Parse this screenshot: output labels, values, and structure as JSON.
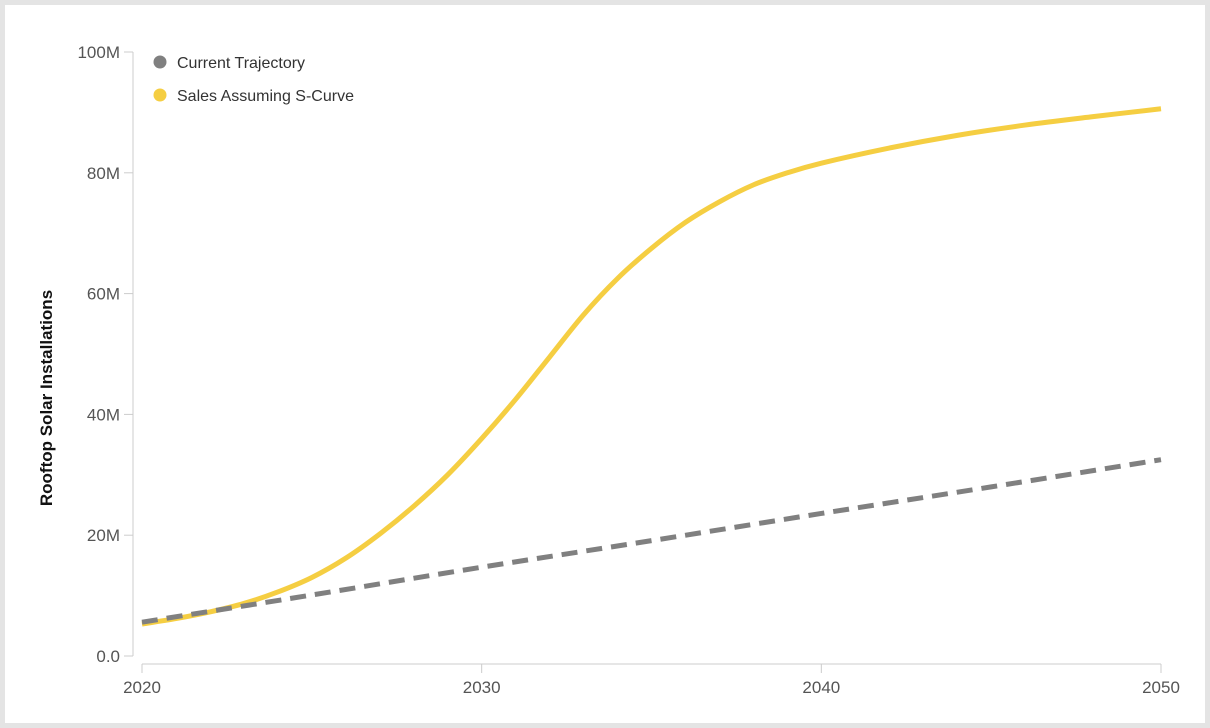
{
  "chart_data": {
    "type": "line",
    "title": "",
    "xlabel": "",
    "ylabel": "Rooftop Solar Installations",
    "xlim": [
      2020,
      2050
    ],
    "ylim": [
      0,
      100000000
    ],
    "x_ticks": [
      {
        "value": 2020,
        "label": "2020"
      },
      {
        "value": 2030,
        "label": "2030"
      },
      {
        "value": 2040,
        "label": "2040"
      },
      {
        "value": 2050,
        "label": "2050"
      }
    ],
    "y_ticks": [
      {
        "value": 0,
        "label": "0.0"
      },
      {
        "value": 20000000,
        "label": "20M"
      },
      {
        "value": 40000000,
        "label": "40M"
      },
      {
        "value": 60000000,
        "label": "60M"
      },
      {
        "value": 80000000,
        "label": "80M"
      },
      {
        "value": 100000000,
        "label": "100M"
      }
    ],
    "grid": false,
    "legend_position": "top-left",
    "series": [
      {
        "name": "Current Trajectory",
        "color": "#808080",
        "style": "dashed",
        "x": [
          2020,
          2025,
          2030,
          2035,
          2040,
          2045,
          2050
        ],
        "values": [
          5600000,
          10100000,
          14700000,
          19100000,
          23600000,
          28000000,
          32500000
        ]
      },
      {
        "name": "Sales Assuming S-Curve",
        "color": "#f5ce42",
        "style": "solid",
        "x": [
          2020,
          2021,
          2022,
          2023,
          2024,
          2025,
          2026,
          2027,
          2028,
          2029,
          2030,
          2031,
          2032,
          2033,
          2034,
          2035,
          2036,
          2037,
          2038,
          2039,
          2040,
          2042,
          2044,
          2046,
          2048,
          2050
        ],
        "values": [
          5300000,
          6200000,
          7300000,
          8700000,
          10600000,
          13000000,
          16200000,
          20200000,
          24800000,
          30000000,
          36000000,
          42500000,
          49500000,
          56500000,
          62500000,
          67500000,
          71800000,
          75200000,
          78000000,
          80000000,
          81600000,
          84100000,
          86200000,
          87900000,
          89300000,
          90600000
        ]
      }
    ]
  }
}
